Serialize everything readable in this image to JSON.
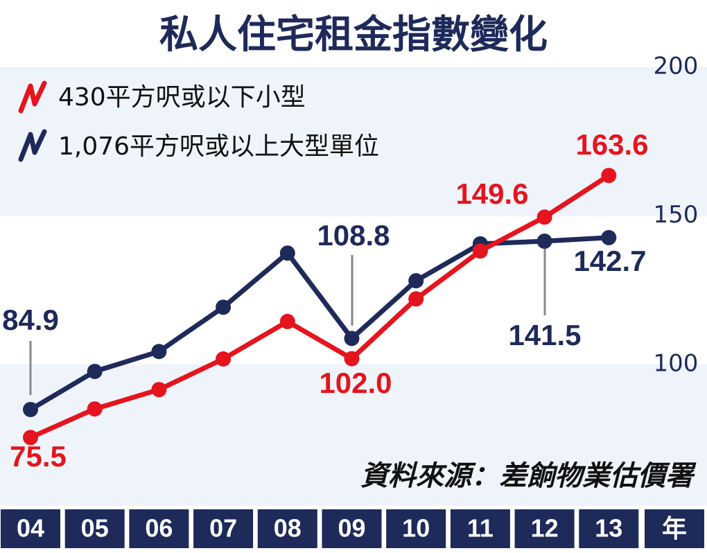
{
  "chart_data": {
    "type": "line",
    "title": "私人住宅租金指數變化",
    "categories": [
      "04",
      "05",
      "06",
      "07",
      "08",
      "09",
      "10",
      "11",
      "12",
      "13"
    ],
    "x_label": "年",
    "series": [
      {
        "name": "430平方呎或以下小型",
        "color": "#e5141e",
        "values": [
          75.5,
          85.1,
          91.6,
          101.9,
          114.5,
          102.0,
          122.1,
          138.2,
          149.6,
          163.6
        ],
        "value_labels": [
          "75.5",
          null,
          null,
          null,
          null,
          "102.0",
          null,
          null,
          "149.6",
          "163.6"
        ]
      },
      {
        "name": "1,076平方呎或以上大型單位",
        "color": "#1e2a5a",
        "values": [
          84.9,
          97.7,
          104.4,
          119.3,
          137.5,
          108.8,
          128.2,
          140.6,
          141.5,
          142.7
        ],
        "value_labels": [
          "84.9",
          null,
          null,
          null,
          null,
          "108.8",
          null,
          null,
          "141.5",
          "142.7"
        ]
      }
    ],
    "ylim": [
      52.5,
      200
    ],
    "yticks": [
      100,
      150,
      200
    ],
    "grid": "bands",
    "source": "資料來源：差餉物業估價署"
  }
}
